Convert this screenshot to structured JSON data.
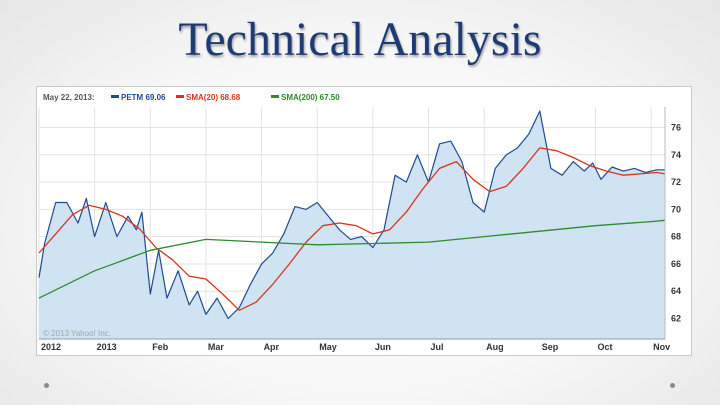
{
  "slide": {
    "title": "Technical Analysis"
  },
  "legend": {
    "date": "May 22, 2013:",
    "items": [
      {
        "label": "PETM 69.06",
        "color": "#1e4b8e"
      },
      {
        "label": "SMA(20) 68.68",
        "color": "#d8341c"
      },
      {
        "label": "SMA(200) 67.50",
        "color": "#2e8b2e"
      }
    ]
  },
  "copyright": "© 2013 Yahoo! Inc.",
  "colors": {
    "price_line": "#1e4b8e",
    "price_fill": "#cfe3f2",
    "sma20": "#d8341c",
    "sma200": "#2e8b2e",
    "grid": "#e3e3e3"
  },
  "chart_data": {
    "type": "area",
    "x_labels": [
      "2012",
      "2013",
      "Feb",
      "Mar",
      "Apr",
      "May",
      "Jun",
      "Jul",
      "Aug",
      "Sep",
      "Oct",
      "Nov"
    ],
    "y_ticks": [
      62,
      64,
      66,
      68,
      70,
      72,
      74,
      76
    ],
    "ylim": [
      60.5,
      77.5
    ],
    "x_range": [
      0,
      11.25
    ],
    "grid": true,
    "series": [
      {
        "name": "PETM",
        "x": [
          0,
          0.1,
          0.3,
          0.5,
          0.7,
          0.85,
          1.0,
          1.2,
          1.4,
          1.6,
          1.75,
          1.85,
          2.0,
          2.15,
          2.3,
          2.5,
          2.7,
          2.85,
          3.0,
          3.2,
          3.4,
          3.6,
          3.8,
          4.0,
          4.2,
          4.4,
          4.6,
          4.8,
          5.0,
          5.2,
          5.4,
          5.6,
          5.8,
          6.0,
          6.2,
          6.4,
          6.6,
          6.8,
          7.0,
          7.2,
          7.4,
          7.6,
          7.8,
          8.0,
          8.2,
          8.4,
          8.6,
          8.8,
          9.0,
          9.2,
          9.4,
          9.6,
          9.8,
          9.95,
          10.1,
          10.3,
          10.5,
          10.7,
          10.9,
          11.1,
          11.25
        ],
        "values": [
          65.0,
          67.5,
          70.5,
          70.5,
          69.0,
          70.8,
          68.0,
          70.5,
          68.0,
          69.5,
          68.5,
          69.8,
          63.8,
          67.0,
          63.5,
          65.5,
          63.0,
          64.0,
          62.3,
          63.5,
          62.0,
          62.8,
          64.5,
          66.0,
          66.8,
          68.2,
          70.2,
          70.0,
          70.5,
          69.5,
          68.5,
          67.8,
          68.0,
          67.2,
          68.5,
          72.5,
          72.0,
          74.0,
          72.0,
          74.8,
          75.0,
          73.5,
          70.5,
          69.8,
          73.0,
          74.0,
          74.5,
          75.5,
          77.2,
          73.0,
          72.5,
          73.5,
          72.8,
          73.4,
          72.2,
          73.1,
          72.8,
          73.0,
          72.7,
          72.9,
          72.9
        ],
        "color": "#1e4b8e"
      },
      {
        "name": "SMA(20)",
        "x": [
          0,
          0.3,
          0.6,
          0.9,
          1.2,
          1.5,
          1.8,
          2.1,
          2.4,
          2.7,
          3.0,
          3.3,
          3.6,
          3.9,
          4.2,
          4.5,
          4.8,
          5.1,
          5.4,
          5.7,
          6.0,
          6.3,
          6.6,
          6.9,
          7.2,
          7.5,
          7.8,
          8.1,
          8.4,
          8.7,
          9.0,
          9.3,
          9.6,
          9.9,
          10.2,
          10.5,
          10.8,
          11.1,
          11.25
        ],
        "values": [
          66.8,
          68.2,
          69.6,
          70.3,
          70.0,
          69.5,
          68.6,
          67.2,
          66.3,
          65.1,
          64.9,
          63.8,
          62.6,
          63.2,
          64.5,
          66.0,
          67.6,
          68.8,
          69.0,
          68.8,
          68.2,
          68.5,
          69.8,
          71.5,
          73.0,
          73.5,
          72.2,
          71.3,
          71.7,
          73.0,
          74.5,
          74.3,
          73.8,
          73.2,
          72.8,
          72.5,
          72.6,
          72.7,
          72.6
        ],
        "color": "#d8341c"
      },
      {
        "name": "SMA(200)",
        "x": [
          0,
          1,
          2,
          3,
          4,
          5,
          6,
          7,
          8,
          9,
          10,
          11,
          11.25
        ],
        "values": [
          63.5,
          65.5,
          67.0,
          67.8,
          67.6,
          67.4,
          67.5,
          67.6,
          68.0,
          68.4,
          68.8,
          69.1,
          69.2
        ],
        "color": "#2e8b2e"
      }
    ]
  }
}
